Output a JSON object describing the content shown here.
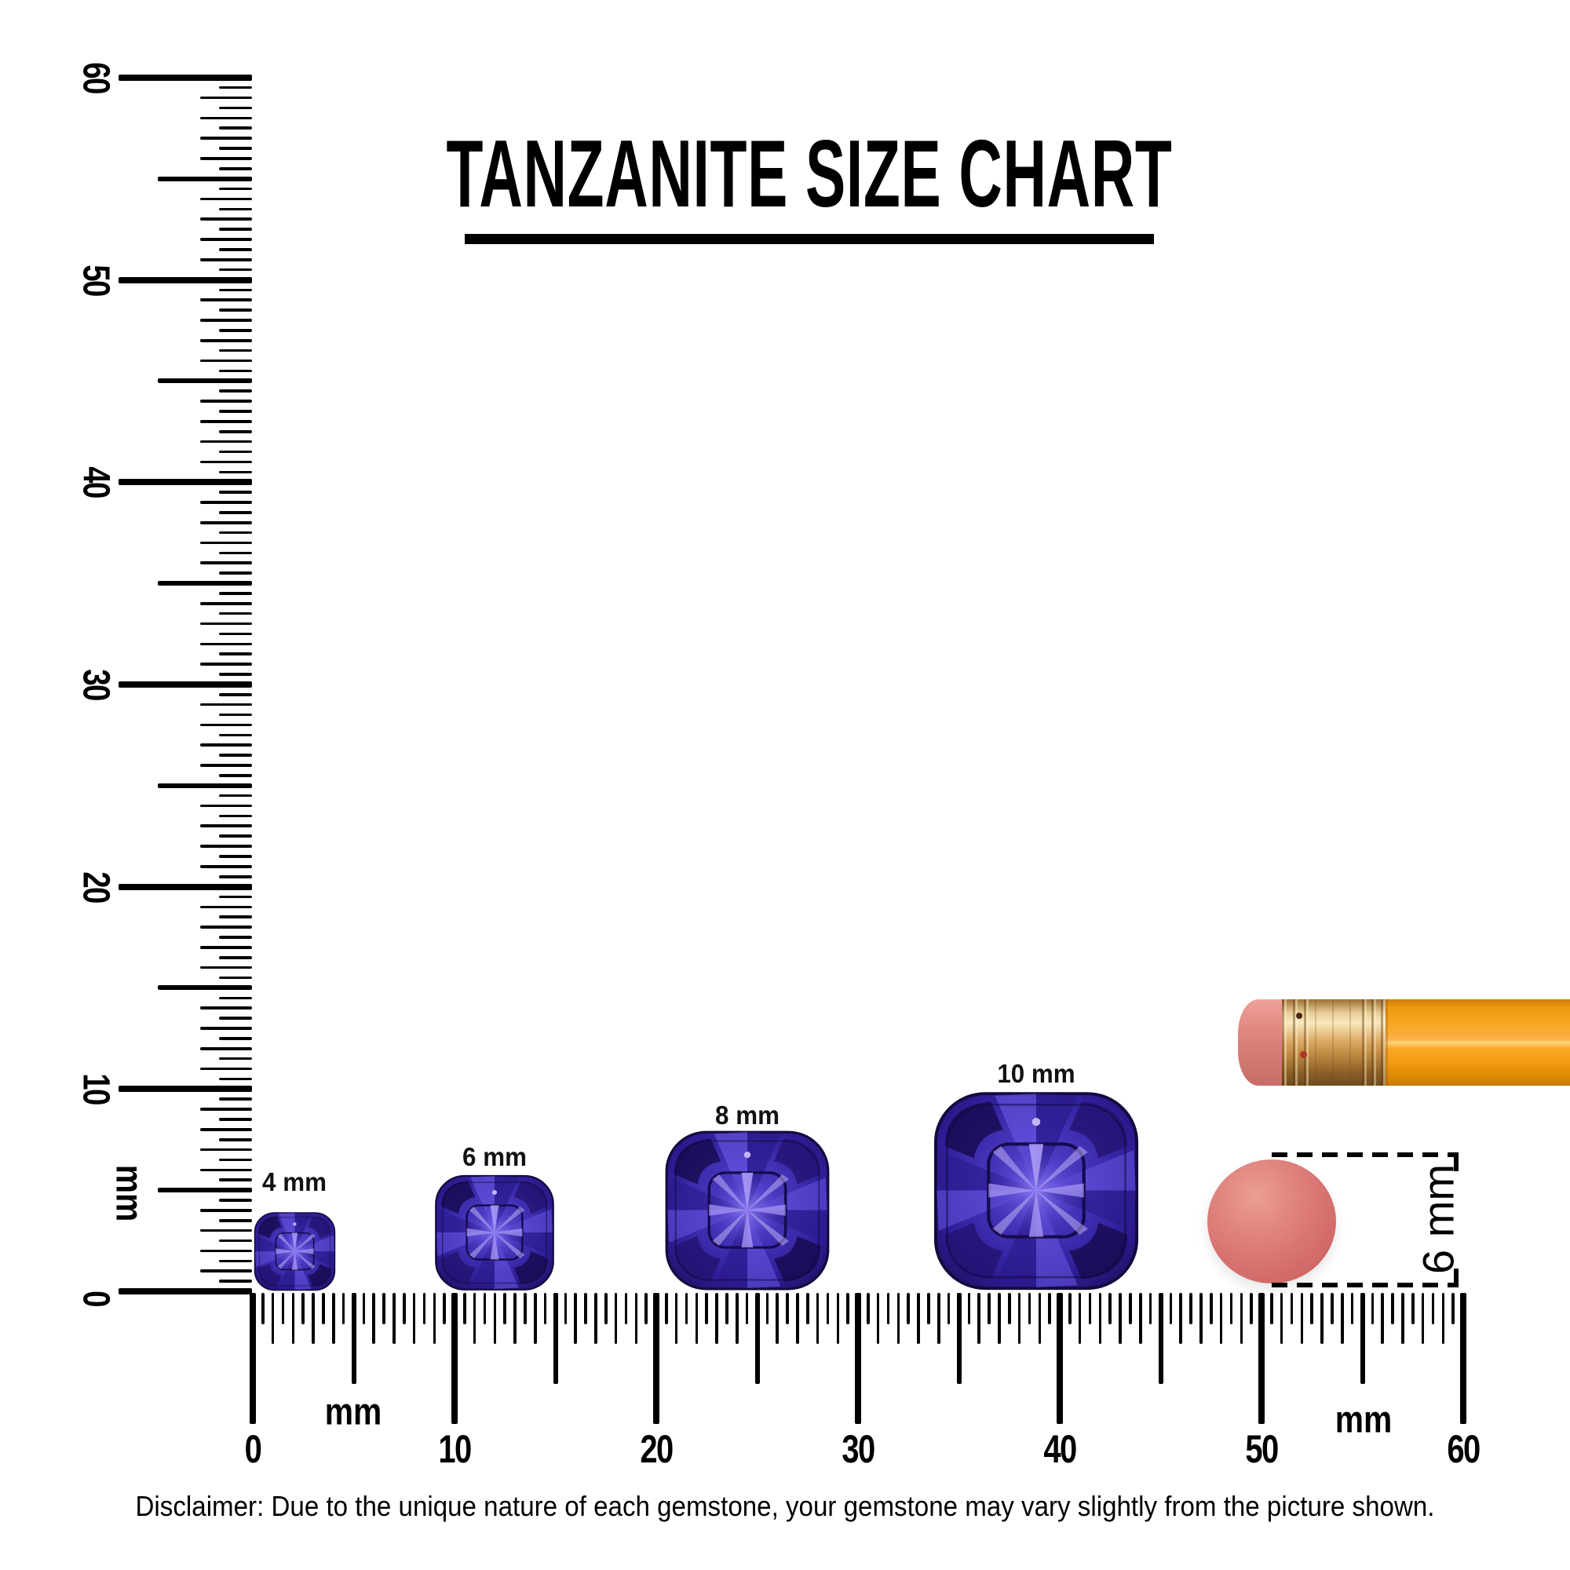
{
  "title": {
    "text": "TANZANITE SIZE CHART"
  },
  "vertical_ruler": {
    "unit_label": "mm",
    "tick_labels": [
      "0",
      "10",
      "20",
      "30",
      "40",
      "50",
      "60"
    ],
    "range_mm": [
      0,
      60
    ]
  },
  "horizontal_ruler": {
    "unit_label_left": "mm",
    "unit_label_right": "mm",
    "tick_labels": [
      "0",
      "10",
      "20",
      "30",
      "40",
      "50",
      "60"
    ],
    "range_mm": [
      0,
      60
    ]
  },
  "gems": [
    {
      "label": "4 mm",
      "size_mm": 4
    },
    {
      "label": "6 mm",
      "size_mm": 6
    },
    {
      "label": "8 mm",
      "size_mm": 8
    },
    {
      "label": "10 mm",
      "size_mm": 10
    }
  ],
  "eraser_dimension": {
    "label": "6 mm"
  },
  "disclaimer": {
    "text": "Disclaimer: Due to the unique nature of each gemstone, your gemstone may vary slightly from the picture shown."
  },
  "colors": {
    "gem_base": "#4332b6",
    "gem_dark": "#1e1060",
    "gem_light": "#8d7df0",
    "pencil_body_orange": "#f9a724",
    "pencil_ferrule_gold": "#dcab68",
    "pencil_eraser_pink": "#d87e79",
    "round_eraser_red": "#d87472",
    "ink": "#000000"
  }
}
